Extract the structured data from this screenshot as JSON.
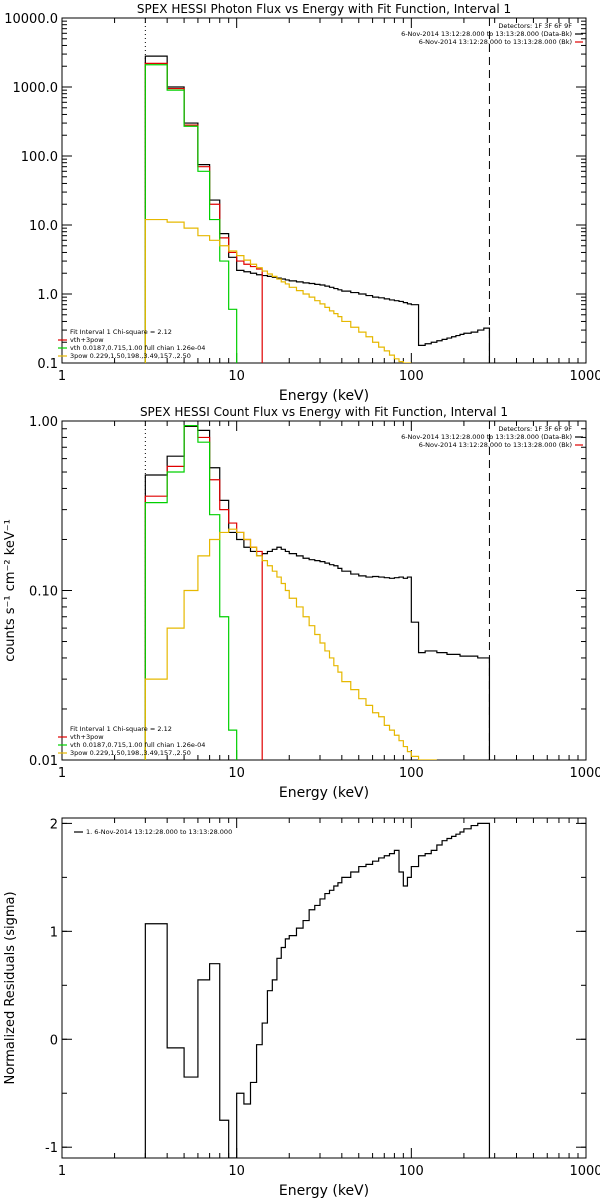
{
  "chart_data": [
    {
      "type": "line",
      "title": "SPEX HESSI Photon Flux vs Energy with Fit Function, Interval 1",
      "xlabel": "Energy (keV)",
      "ylabel": "",
      "xscale": "log",
      "yscale": "log",
      "xlim": [
        1,
        1000
      ],
      "ylim": [
        0.1,
        10000
      ],
      "xticks": [
        [
          1,
          "1"
        ],
        [
          10,
          "10"
        ],
        [
          100,
          "100"
        ],
        [
          1000,
          "1000"
        ]
      ],
      "yticks": [
        [
          0.1,
          "0.1"
        ],
        [
          1,
          "1.0"
        ],
        [
          10,
          "10.0"
        ],
        [
          100,
          "100.0"
        ],
        [
          1000,
          "1000.0"
        ],
        [
          10000,
          "10000.0"
        ]
      ],
      "vlines": [
        {
          "x": 3,
          "style": "dotted"
        },
        {
          "x": 280,
          "style": "dashed"
        }
      ],
      "legend_tr": [
        {
          "text": "Detectors: 1F 3F 6F 9F",
          "color": null
        },
        {
          "text": "6-Nov-2014 13:12:28.000 to 13:13:28.000 (Data-Bk)",
          "color": "#000000"
        },
        {
          "text": "6-Nov-2014 13:12:28.000 to 13:13:28.000 (Bk)",
          "color": "#e00000"
        }
      ],
      "legend_bl": [
        {
          "text": "Fit Interval  1    Chi-square = 2.12",
          "color": null
        },
        {
          "text": "vth+3pow",
          "color": "#e00000"
        },
        {
          "text": "vth 0.0187,0.715,1.00  full chian 1.26e-04",
          "color": "#00d000"
        },
        {
          "text": "3pow 0.229,1.50,198.,3.49,157.,2.50",
          "color": "#e6b800"
        }
      ],
      "series": [
        {
          "color": "#000000",
          "edges": [
            3,
            4,
            5,
            6,
            7,
            8,
            9,
            10,
            11,
            12,
            13,
            14,
            15,
            16,
            17,
            18,
            19,
            20,
            22,
            24,
            26,
            28,
            30,
            32,
            34,
            36,
            38,
            40,
            45,
            50,
            55,
            60,
            65,
            70,
            75,
            80,
            85,
            90,
            95,
            100,
            110,
            120,
            130,
            140,
            150,
            160,
            170,
            180,
            190,
            200,
            220,
            240,
            260,
            280
          ],
          "values": [
            2800,
            1000,
            300,
            75,
            23,
            7.5,
            3.4,
            2.2,
            2.1,
            2.0,
            1.9,
            1.85,
            1.8,
            1.75,
            1.7,
            1.65,
            1.6,
            1.55,
            1.5,
            1.45,
            1.42,
            1.38,
            1.35,
            1.3,
            1.25,
            1.2,
            1.15,
            1.1,
            1.05,
            1.0,
            0.95,
            0.9,
            0.88,
            0.85,
            0.82,
            0.8,
            0.78,
            0.75,
            0.72,
            0.7,
            0.18,
            0.19,
            0.2,
            0.21,
            0.22,
            0.23,
            0.24,
            0.25,
            0.26,
            0.27,
            0.28,
            0.3,
            0.32
          ]
        },
        {
          "color": "#e00000",
          "edges": [
            3,
            4,
            5,
            6,
            7,
            8,
            9,
            10,
            11,
            12,
            13,
            14
          ],
          "values": [
            2200,
            950,
            280,
            70,
            20,
            6.5,
            4.0,
            3.0,
            2.7,
            2.5,
            2.3
          ]
        },
        {
          "color": "#00d000",
          "edges": [
            3,
            4,
            5,
            6,
            7,
            8,
            9,
            10
          ],
          "values": [
            2100,
            900,
            270,
            60,
            12,
            3.0,
            0.6
          ]
        },
        {
          "color": "#e6b800",
          "edges": [
            3,
            4,
            5,
            6,
            7,
            8,
            9,
            10,
            11,
            12,
            13,
            14,
            15,
            16,
            17,
            18,
            19,
            20,
            22,
            24,
            26,
            28,
            30,
            32,
            34,
            36,
            38,
            40,
            45,
            50,
            55,
            60,
            65,
            70,
            75,
            80,
            85,
            90,
            95,
            100
          ],
          "values": [
            12,
            11,
            9,
            7,
            6,
            5,
            4.2,
            3.6,
            3.1,
            2.7,
            2.4,
            2.15,
            1.95,
            1.8,
            1.65,
            1.5,
            1.4,
            1.25,
            1.12,
            1.0,
            0.9,
            0.8,
            0.72,
            0.64,
            0.57,
            0.52,
            0.47,
            0.4,
            0.33,
            0.28,
            0.24,
            0.2,
            0.17,
            0.15,
            0.13,
            0.115,
            0.105,
            0.1,
            0.09
          ]
        }
      ]
    },
    {
      "type": "line",
      "title": "SPEX HESSI Count Flux vs Energy with Fit Function, Interval 1",
      "xlabel": "Energy (keV)",
      "ylabel": "counts s⁻¹ cm⁻² keV⁻¹",
      "xscale": "log",
      "yscale": "log",
      "xlim": [
        1,
        1000
      ],
      "ylim": [
        0.01,
        1.0
      ],
      "xticks": [
        [
          1,
          "1"
        ],
        [
          10,
          "10"
        ],
        [
          100,
          "100"
        ],
        [
          1000,
          "1000"
        ]
      ],
      "yticks": [
        [
          0.01,
          "0.01"
        ],
        [
          0.1,
          "0.10"
        ],
        [
          1,
          "1.00"
        ]
      ],
      "vlines": [
        {
          "x": 3,
          "style": "dotted"
        },
        {
          "x": 280,
          "style": "dashed"
        }
      ],
      "legend_tr": [
        {
          "text": "Detectors: 1F 3F 6F 9F",
          "color": null
        },
        {
          "text": "6-Nov-2014 13:12:28.000 to 13:13:28.000 (Data-Bk)",
          "color": "#000000"
        },
        {
          "text": "6-Nov-2014 13:12:28.000 to 13:13:28.000 (Bk)",
          "color": "#e00000"
        }
      ],
      "legend_bl": [
        {
          "text": "Fit Interval  1    Chi-square = 2.12",
          "color": null
        },
        {
          "text": "vth+3pow",
          "color": "#e00000"
        },
        {
          "text": "vth 0.0187,0.715,1.00  full chian 1.26e-04",
          "color": "#00d000"
        },
        {
          "text": "3pow 0.229,1.50,198.,3.49,157.,2.50",
          "color": "#e6b800"
        }
      ],
      "series": [
        {
          "color": "#000000",
          "edges": [
            3,
            4,
            5,
            6,
            7,
            8,
            9,
            10,
            11,
            12,
            13,
            14,
            15,
            16,
            17,
            18,
            19,
            20,
            22,
            24,
            26,
            28,
            30,
            32,
            34,
            36,
            38,
            40,
            45,
            50,
            55,
            60,
            65,
            70,
            75,
            80,
            85,
            90,
            95,
            100,
            110,
            120,
            130,
            140,
            150,
            160,
            170,
            180,
            190,
            200,
            220,
            240,
            260,
            280
          ],
          "values": [
            0.48,
            0.62,
            0.93,
            0.88,
            0.53,
            0.34,
            0.22,
            0.2,
            0.18,
            0.17,
            0.16,
            0.165,
            0.17,
            0.175,
            0.18,
            0.175,
            0.17,
            0.165,
            0.16,
            0.155,
            0.152,
            0.15,
            0.148,
            0.145,
            0.142,
            0.14,
            0.135,
            0.13,
            0.125,
            0.122,
            0.12,
            0.121,
            0.12,
            0.119,
            0.118,
            0.119,
            0.12,
            0.118,
            0.12,
            0.065,
            0.043,
            0.044,
            0.044,
            0.043,
            0.043,
            0.042,
            0.042,
            0.042,
            0.041,
            0.041,
            0.041,
            0.04,
            0.04
          ]
        },
        {
          "color": "#e00000",
          "edges": [
            3,
            4,
            5,
            6,
            7,
            8,
            9,
            10,
            11,
            12,
            13,
            14
          ],
          "values": [
            0.36,
            0.54,
            0.94,
            0.8,
            0.45,
            0.3,
            0.25,
            0.22,
            0.2,
            0.18,
            0.17
          ]
        },
        {
          "color": "#00d000",
          "edges": [
            3,
            4,
            5,
            6,
            7,
            8,
            9,
            10
          ],
          "values": [
            0.33,
            0.5,
            0.94,
            0.75,
            0.28,
            0.07,
            0.015
          ]
        },
        {
          "color": "#e6b800",
          "edges": [
            3,
            4,
            5,
            6,
            7,
            8,
            9,
            10,
            11,
            12,
            13,
            14,
            15,
            16,
            17,
            18,
            19,
            20,
            22,
            24,
            26,
            28,
            30,
            32,
            34,
            36,
            38,
            40,
            45,
            50,
            55,
            60,
            65,
            70,
            75,
            80,
            85,
            90,
            95,
            100,
            110,
            120,
            130,
            140
          ],
          "values": [
            0.03,
            0.06,
            0.1,
            0.16,
            0.2,
            0.22,
            0.23,
            0.22,
            0.2,
            0.18,
            0.16,
            0.15,
            0.14,
            0.13,
            0.12,
            0.11,
            0.1,
            0.09,
            0.08,
            0.07,
            0.062,
            0.055,
            0.049,
            0.044,
            0.04,
            0.036,
            0.033,
            0.029,
            0.026,
            0.023,
            0.021,
            0.019,
            0.018,
            0.016,
            0.015,
            0.014,
            0.013,
            0.012,
            0.0112,
            0.0105,
            0.0098,
            0.0094,
            0.0091
          ]
        }
      ]
    },
    {
      "type": "line",
      "title": "",
      "xlabel": "Energy (keV)",
      "ylabel": "Normalized Residuals (sigma)",
      "xscale": "log",
      "yscale": "linear",
      "xlim": [
        1,
        1000
      ],
      "ylim": [
        -1.1,
        2.05
      ],
      "xticks": [
        [
          1,
          "1"
        ],
        [
          10,
          "10"
        ],
        [
          100,
          "100"
        ],
        [
          1000,
          "1000"
        ]
      ],
      "yticks": [
        [
          -1,
          "-1"
        ],
        [
          0,
          "0"
        ],
        [
          1,
          "1"
        ],
        [
          2,
          "2"
        ]
      ],
      "vlines": [],
      "legend_tl": [
        {
          "text": "1.  6-Nov-2014 13:12:28.000 to 13:13:28.000",
          "color": "#000000"
        }
      ],
      "series": [
        {
          "color": "#000000",
          "edges": [
            3,
            4,
            5,
            6,
            7,
            8,
            9,
            10,
            11,
            12,
            13,
            14,
            15,
            16,
            17,
            18,
            19,
            20,
            22,
            24,
            26,
            28,
            30,
            32,
            34,
            36,
            38,
            40,
            45,
            50,
            55,
            60,
            65,
            70,
            75,
            80,
            85,
            90,
            95,
            100,
            110,
            120,
            130,
            140,
            150,
            160,
            170,
            180,
            190,
            200,
            220,
            240,
            260,
            280
          ],
          "values": [
            1.07,
            -0.08,
            -0.35,
            0.55,
            0.7,
            -0.75,
            -1.1,
            -0.5,
            -0.6,
            -0.4,
            -0.05,
            0.15,
            0.45,
            0.55,
            0.75,
            0.85,
            0.93,
            0.96,
            1.03,
            1.1,
            1.2,
            1.24,
            1.3,
            1.35,
            1.38,
            1.42,
            1.45,
            1.5,
            1.55,
            1.6,
            1.62,
            1.65,
            1.68,
            1.7,
            1.72,
            1.75,
            1.55,
            1.42,
            1.5,
            1.6,
            1.7,
            1.72,
            1.75,
            1.8,
            1.84,
            1.86,
            1.88,
            1.9,
            1.92,
            1.95,
            1.98,
            2.0,
            2.0
          ]
        }
      ]
    }
  ]
}
